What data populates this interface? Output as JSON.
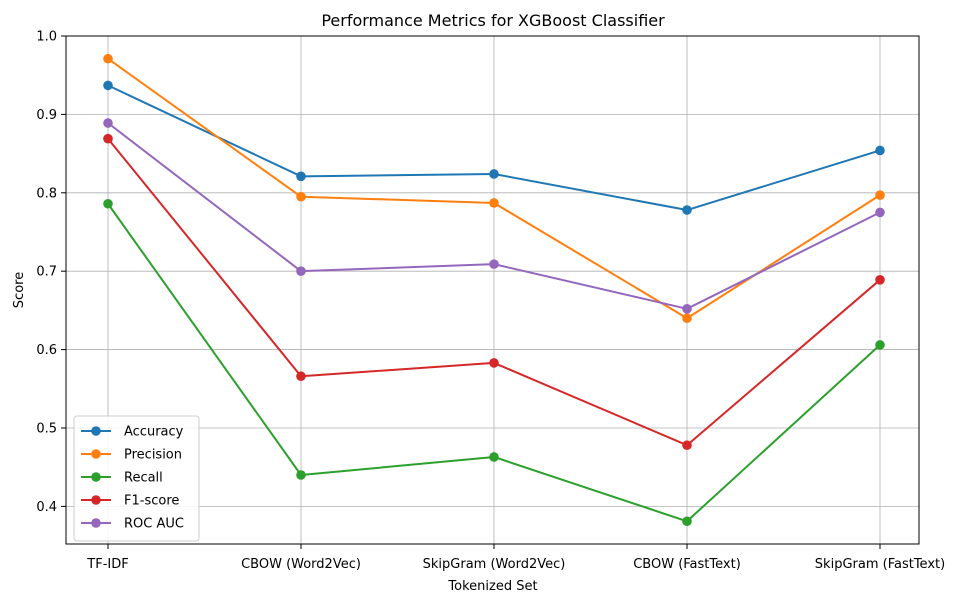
{
  "chart_data": {
    "type": "line",
    "title": "Performance Metrics for XGBoost Classifier",
    "xlabel": "Tokenized Set",
    "ylabel": "Score",
    "categories": [
      "TF-IDF",
      "CBOW (Word2Vec)",
      "SkipGram (Word2Vec)",
      "CBOW (FastText)",
      "SkipGram (FastText)"
    ],
    "ylim": [
      0.352,
      1.0
    ],
    "yticks": [
      "0.4",
      "0.5",
      "0.6",
      "0.7",
      "0.8",
      "0.9",
      "1.0"
    ],
    "grid": true,
    "legend_position": "lower-left",
    "series": [
      {
        "name": "Accuracy",
        "color": "#1f77b4",
        "values": [
          0.937,
          0.821,
          0.824,
          0.778,
          0.854
        ]
      },
      {
        "name": "Precision",
        "color": "#ff7f0e",
        "values": [
          0.971,
          0.795,
          0.787,
          0.64,
          0.797
        ]
      },
      {
        "name": "Recall",
        "color": "#2ca02c",
        "values": [
          0.786,
          0.44,
          0.463,
          0.381,
          0.606
        ]
      },
      {
        "name": "F1-score",
        "color": "#d62728",
        "values": [
          0.869,
          0.566,
          0.583,
          0.478,
          0.689
        ]
      },
      {
        "name": "ROC AUC",
        "color": "#9467bd",
        "values": [
          0.889,
          0.7,
          0.709,
          0.652,
          0.775
        ]
      }
    ]
  }
}
